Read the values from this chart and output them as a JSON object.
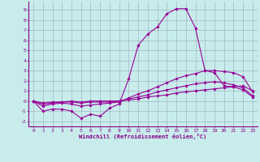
{
  "xlabel": "Windchill (Refroidissement éolien,°C)",
  "bg_color": "#c8ecec",
  "line_color": "#990099",
  "grid_color": "#99aabb",
  "xlim": [
    -0.5,
    23.5
  ],
  "ylim": [
    -2.5,
    9.8
  ],
  "xticks": [
    0,
    1,
    2,
    3,
    4,
    5,
    6,
    7,
    8,
    9,
    10,
    11,
    12,
    13,
    14,
    15,
    16,
    17,
    18,
    19,
    20,
    21,
    22,
    23
  ],
  "yticks": [
    -2,
    -1,
    0,
    1,
    2,
    3,
    4,
    5,
    6,
    7,
    8,
    9
  ],
  "series": [
    {
      "x": [
        0,
        1,
        2,
        3,
        4,
        5,
        6,
        7,
        8,
        9,
        10,
        11,
        12,
        13,
        14,
        15,
        16,
        17,
        18,
        19,
        20,
        21,
        22,
        23
      ],
      "y": [
        0,
        -1.0,
        -0.8,
        -0.8,
        -1.0,
        -1.7,
        -1.3,
        -1.5,
        -0.7,
        -0.3,
        2.2,
        5.5,
        6.6,
        7.3,
        8.6,
        9.1,
        9.1,
        7.2,
        3.0,
        2.8,
        1.5,
        1.4,
        1.5,
        1.0
      ]
    },
    {
      "x": [
        0,
        1,
        2,
        3,
        4,
        5,
        6,
        7,
        8,
        9,
        10,
        11,
        12,
        13,
        14,
        15,
        16,
        17,
        18,
        19,
        20,
        21,
        22,
        23
      ],
      "y": [
        0,
        -0.5,
        -0.3,
        -0.2,
        -0.3,
        -0.5,
        -0.4,
        -0.3,
        -0.2,
        -0.1,
        0.3,
        0.7,
        1.0,
        1.4,
        1.8,
        2.2,
        2.5,
        2.7,
        3.0,
        3.0,
        2.9,
        2.8,
        2.4,
        0.9
      ]
    },
    {
      "x": [
        0,
        1,
        2,
        3,
        4,
        5,
        6,
        7,
        8,
        9,
        10,
        11,
        12,
        13,
        14,
        15,
        16,
        17,
        18,
        19,
        20,
        21,
        22,
        23
      ],
      "y": [
        0,
        -0.3,
        -0.2,
        -0.1,
        -0.1,
        -0.2,
        -0.1,
        -0.1,
        -0.1,
        0.0,
        0.2,
        0.4,
        0.6,
        0.9,
        1.1,
        1.3,
        1.5,
        1.7,
        1.8,
        1.9,
        1.8,
        1.6,
        1.3,
        0.5
      ]
    },
    {
      "x": [
        0,
        1,
        2,
        3,
        4,
        5,
        6,
        7,
        8,
        9,
        10,
        11,
        12,
        13,
        14,
        15,
        16,
        17,
        18,
        19,
        20,
        21,
        22,
        23
      ],
      "y": [
        0,
        -0.2,
        -0.1,
        -0.1,
        0.0,
        -0.1,
        0.0,
        0.0,
        0.0,
        0.0,
        0.1,
        0.2,
        0.4,
        0.5,
        0.6,
        0.8,
        0.9,
        1.0,
        1.1,
        1.2,
        1.3,
        1.4,
        1.1,
        0.4
      ]
    }
  ]
}
